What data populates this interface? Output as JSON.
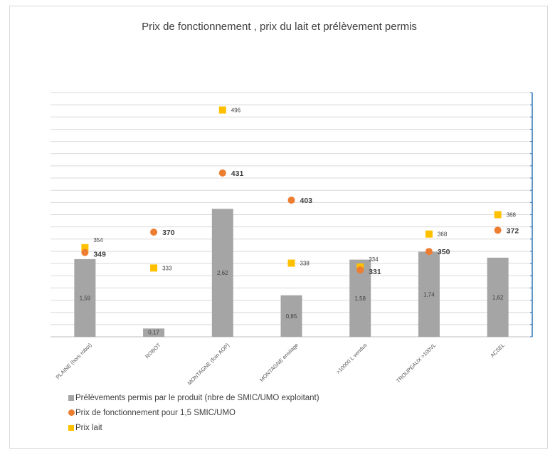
{
  "chart_data": {
    "type": "bar",
    "title": "Prix de fonctionnement , prix du lait et prélèvement permis",
    "categories": [
      "PLAINE (hors robot)",
      "ROBOT",
      "MONTAGNE (foin AOP)",
      "MONTAGNE ensilage",
      ">10000 L vendus",
      "TROUPEAUX >100VL",
      "ACSEL"
    ],
    "series": [
      {
        "name": "Prélèvements permis par le produit (nbre de SMIC/UMO exploitant)",
        "kind": "bar",
        "color": "#a5a5a5",
        "values": [
          1.59,
          0.17,
          2.62,
          0.85,
          1.58,
          1.74,
          1.62
        ],
        "labels": [
          "1,59",
          "0,17",
          "2,62",
          "0,85",
          "1,58",
          "1,74",
          "1,62"
        ]
      },
      {
        "name": "Prix de fonctionnement  pour 1,5 SMIC/UMO",
        "kind": "dot",
        "color": "#ed7d31",
        "values": [
          349,
          370,
          431,
          403,
          331,
          350,
          372
        ],
        "labels": [
          "349",
          "370",
          "431",
          "403",
          "331",
          "350",
          "372"
        ]
      },
      {
        "name": "Prix lait",
        "kind": "square",
        "color": "#ffc000",
        "values": [
          354,
          333,
          496,
          338,
          334,
          368,
          388
        ],
        "labels": [
          "354",
          "333",
          "496",
          "338",
          "334",
          "368",
          "388"
        ]
      }
    ],
    "legend_position": "bottom-left",
    "grid": true
  }
}
